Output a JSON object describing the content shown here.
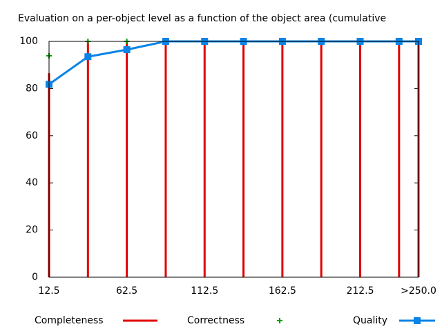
{
  "chart_data": {
    "type": "line",
    "title": "Evaluation on a per-object level as a function of the object area (cumulative",
    "x": [
      12.5,
      37.5,
      62.5,
      87.5,
      112.5,
      137.5,
      162.5,
      187.5,
      212.5,
      237.5,
      250
    ],
    "series": [
      {
        "name": "Completeness",
        "color": "#e00000",
        "style": "impulses",
        "values": [
          86.5,
          100,
          100,
          100,
          100,
          100,
          100,
          100,
          100,
          100,
          100
        ]
      },
      {
        "name": "Correctness",
        "color": "#00a000",
        "style": "points",
        "values": [
          93.9,
          100,
          100,
          100,
          100,
          100,
          100,
          100,
          100,
          100,
          100
        ]
      },
      {
        "name": "Quality",
        "color": "#0a84e6",
        "style": "linespoints",
        "values": [
          81.8,
          93.5,
          96.5,
          100,
          100,
          100,
          100,
          100,
          100,
          100,
          100
        ]
      }
    ],
    "xlim": [
      12.5,
      250
    ],
    "ylim": [
      0,
      100
    ],
    "xticks": [
      12.5,
      62.5,
      112.5,
      162.5,
      212.5,
      {
        "value": 250,
        "label": ">250.0"
      }
    ],
    "yticks": [
      0,
      20,
      40,
      60,
      80,
      100
    ],
    "legend": "bottom"
  }
}
